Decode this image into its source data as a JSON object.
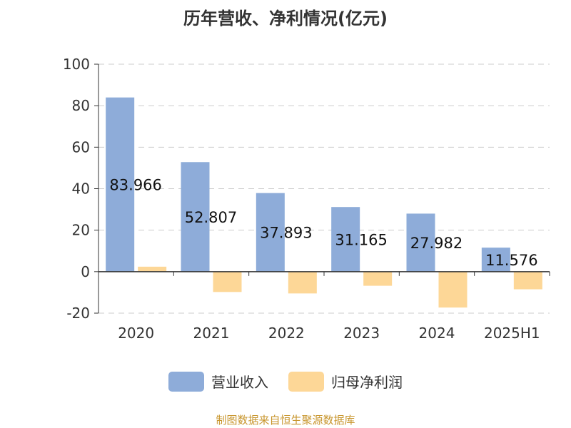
{
  "chart_data": {
    "type": "bar",
    "title": "历年营收、净利情况(亿元)",
    "categories": [
      "2020",
      "2021",
      "2022",
      "2023",
      "2024",
      "2025H1"
    ],
    "series": [
      {
        "name": "营业收入",
        "color": "#8eacd9",
        "values": [
          83.966,
          52.807,
          37.893,
          31.165,
          27.982,
          11.576
        ],
        "labels": [
          "83.966",
          "52.807",
          "37.893",
          "31.165",
          "27.982",
          "11.576"
        ]
      },
      {
        "name": "归母净利润",
        "color": "#fdd797",
        "values": [
          2.4,
          -9.8,
          -10.5,
          -6.8,
          -17.3,
          -8.5
        ]
      }
    ],
    "ylim": [
      -20,
      100
    ],
    "yticks": [
      "100",
      "80",
      "60",
      "40",
      "20",
      "0",
      "-20"
    ],
    "ytick_values": [
      100,
      80,
      60,
      40,
      20,
      0,
      -20
    ],
    "grid": true,
    "legend_position": "bottom"
  },
  "source_note": "制图数据来自恒生聚源数据库"
}
